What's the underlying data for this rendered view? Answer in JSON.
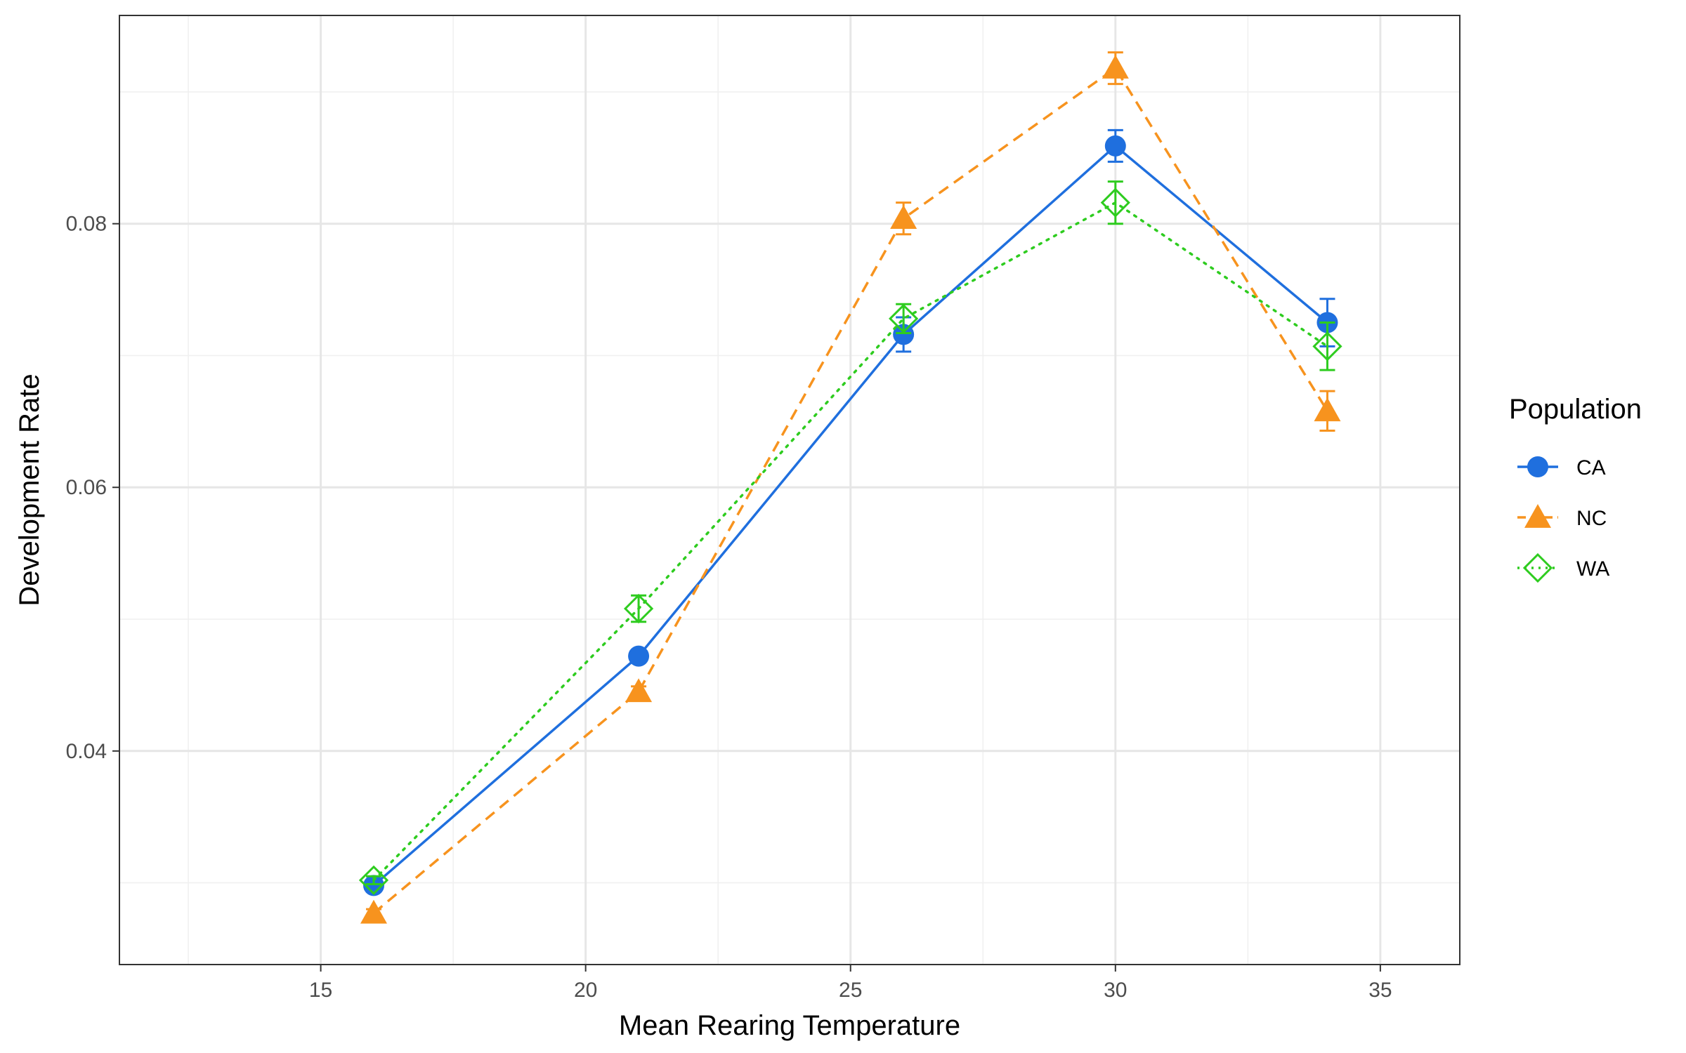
{
  "chart_data": {
    "type": "line",
    "title": "",
    "xlabel": "Mean Rearing Temperature",
    "ylabel": "Development Rate",
    "xlim": [
      11.2,
      36.5
    ],
    "ylim": [
      0.0238,
      0.0958
    ],
    "x_ticks": [
      15,
      20,
      25,
      30,
      35
    ],
    "x_tick_labels": [
      "15",
      "20",
      "25",
      "30",
      "35"
    ],
    "y_ticks": [
      0.04,
      0.06,
      0.08
    ],
    "y_tick_labels": [
      "0.04",
      "0.06",
      "0.08"
    ],
    "grid": true,
    "legend": {
      "title": "Population",
      "placement": "right"
    },
    "series": [
      {
        "name": "CA",
        "color": "#1f6fde",
        "marker": "circle",
        "line_style": "solid",
        "x": [
          16,
          21,
          26,
          30,
          34
        ],
        "y": [
          0.0298,
          0.0472,
          0.0716,
          0.0859,
          0.0725
        ],
        "err": [
          0.0004,
          0.0004,
          0.0013,
          0.0012,
          0.0018
        ]
      },
      {
        "name": "NC",
        "color": "#f7931e",
        "marker": "triangle",
        "line_style": "dashed",
        "x": [
          16,
          21,
          26,
          30,
          34
        ],
        "y": [
          0.0277,
          0.0445,
          0.0804,
          0.0918,
          0.0658
        ],
        "err": [
          0.0003,
          0.0004,
          0.0012,
          0.0012,
          0.0015
        ]
      },
      {
        "name": "WA",
        "color": "#2ecc1f",
        "marker": "diamond-open",
        "line_style": "dotted",
        "x": [
          16,
          21,
          26,
          30,
          34
        ],
        "y": [
          0.0302,
          0.0508,
          0.0728,
          0.0816,
          0.0707
        ],
        "err": [
          0.0003,
          0.001,
          0.0011,
          0.0016,
          0.0018
        ]
      }
    ]
  }
}
